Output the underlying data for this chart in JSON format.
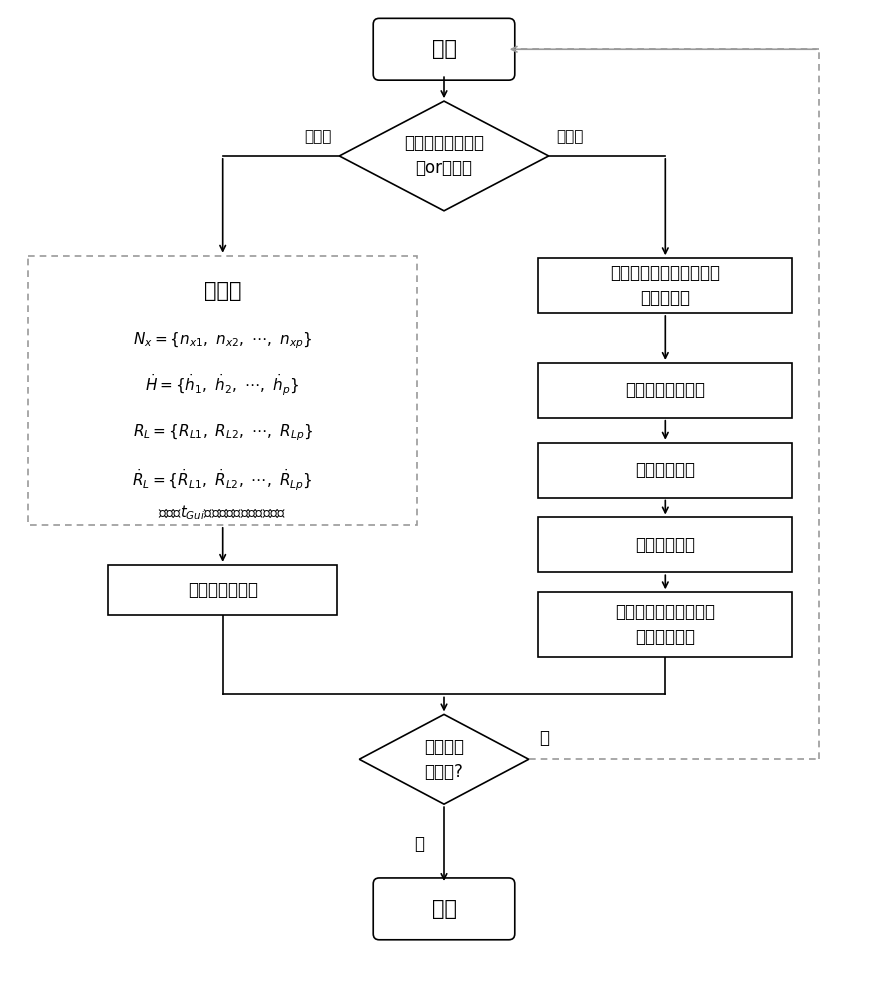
{
  "bg_color": "#ffffff",
  "line_color": "#000000",
  "start_text": "开始",
  "end_text": "结束",
  "decision1_text": "本时间片计算快任\n务or慢任务",
  "fast_label": "快任务",
  "slow_label": "慢任务",
  "r1_text": "利用导航数据初始化动力\n学外推模块",
  "r2_text": "数值积分落点预报",
  "r3_text": "偏差校正计算",
  "r4_text": "偏差校正计算",
  "r5_text": "校正后弹道计算与基准\n弹道表格存储",
  "lb_title": "查表格",
  "lb_line1": "$N_x = \\{n_{x1},\\ n_{x2},\\ \\cdots,\\ n_{xp}\\}$",
  "lb_line2": "$\\dot{H} = \\{\\dot{h}_1,\\ \\dot{h}_2,\\ \\cdots,\\ \\dot{h}_p\\}$",
  "lb_line3": "$R_L = \\{R_{L1},\\ R_{L2},\\ \\cdots,\\ R_{Lp}\\}$",
  "lb_line4": "$\\dot{R}_L = \\{\\dot{R}_{L1},\\ \\dot{R}_{L2},\\ \\cdots,\\ \\dot{R}_{Lp}\\}$",
  "lb_line5": "获得与$t_{Gui}$时刻相对应的弹道期望值",
  "calc_text": "计算倾侧角指令",
  "decision2_text": "升力控制\n停止否?",
  "yes_label": "是",
  "no_label": "否"
}
